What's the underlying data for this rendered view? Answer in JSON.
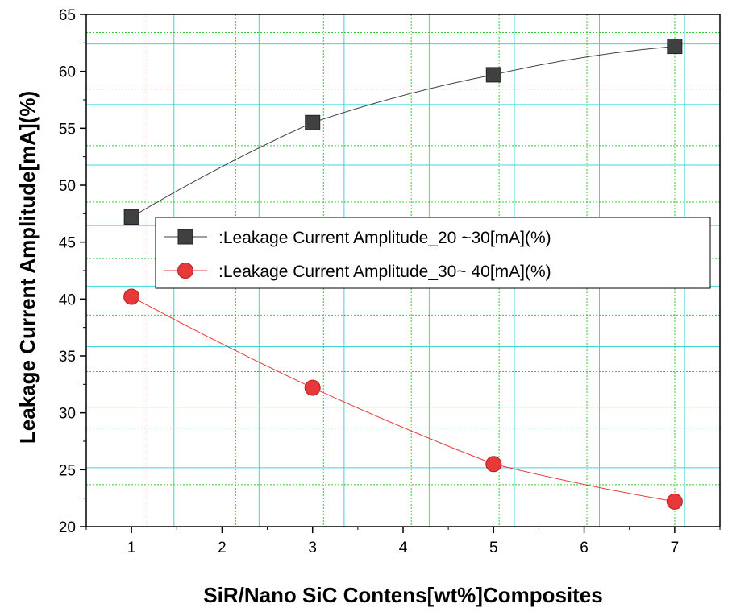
{
  "chart_data": {
    "type": "line",
    "xlabel": "SiR/Nano SiC Contens[wt%]Composites",
    "ylabel": "Leakage Current Amplitude[mA](%)",
    "xlim": [
      0.5,
      7.5
    ],
    "ylim": [
      20,
      65
    ],
    "x_ticks": [
      "1",
      "2",
      "3",
      "4",
      "5",
      "6",
      "7"
    ],
    "y_ticks": [
      "20",
      "25",
      "30",
      "35",
      "40",
      "45",
      "50",
      "55",
      "60",
      "65"
    ],
    "grid": true,
    "legend_position": "right-middle",
    "x": [
      1,
      3,
      5,
      7
    ],
    "series": [
      {
        "name": ":Leakage Current Amplitude_20 ~30[mA](%)",
        "values": [
          47.2,
          55.5,
          59.7,
          62.2
        ],
        "color": "#404040",
        "marker": "square"
      },
      {
        "name": ":Leakage Current Amplitude_30~ 40[mA](%)",
        "values": [
          40.2,
          32.2,
          25.5,
          22.2
        ],
        "color": "#e8393a",
        "marker": "circle"
      }
    ],
    "colors": {
      "grid_cyan": "#3cd6d6",
      "grid_green": "#33cc33"
    }
  }
}
